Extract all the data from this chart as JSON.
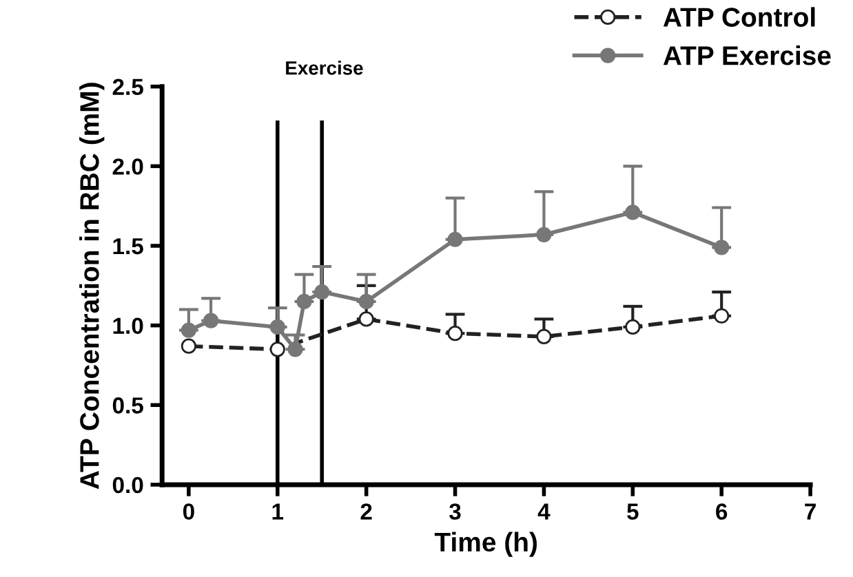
{
  "chart_data": {
    "type": "line",
    "xlabel": "Time (h)",
    "ylabel": "ATP Concentration in RBC (mM)",
    "xlim": [
      -0.3,
      7
    ],
    "xticks": [
      0,
      1,
      2,
      3,
      4,
      5,
      6,
      7
    ],
    "ylim": [
      0,
      2.5
    ],
    "yticks": [
      {
        "value": 0,
        "label": "0.0"
      },
      {
        "value": 0.5,
        "label": "0.5"
      },
      {
        "value": 1,
        "label": "1.0"
      },
      {
        "value": 1.5,
        "label": "1.5"
      },
      {
        "value": 2,
        "label": "2.0"
      },
      {
        "value": 2.5,
        "label": "2.5"
      }
    ],
    "grid": false,
    "legend": "top right",
    "ref_lines": [
      {
        "axis": "x",
        "value": 1,
        "color": "#000000"
      },
      {
        "axis": "x",
        "value": 1.5,
        "color": "#000000"
      }
    ],
    "annotations": [
      "Exercise"
    ],
    "series": [
      {
        "name": "ATP Control",
        "color": "#222222",
        "marker": "circle",
        "line_style": "dashed",
        "x": [
          0,
          1,
          2,
          3,
          4,
          5,
          6
        ],
        "values": [
          0.87,
          0.85,
          1.04,
          0.95,
          0.93,
          0.99,
          1.06
        ],
        "errors": [
          null,
          null,
          [
            1.04,
            1.25
          ],
          [
            0.95,
            1.07
          ],
          [
            0.93,
            1.04
          ],
          [
            0.99,
            1.12
          ],
          [
            1.06,
            1.21
          ]
        ]
      },
      {
        "name": "ATP Exercise",
        "color": "#777777",
        "marker": "circle",
        "line_style": "solid",
        "x": [
          0,
          0.25,
          1,
          1.2,
          1.3,
          1.5,
          2,
          3,
          4,
          5,
          6
        ],
        "values": [
          0.97,
          1.03,
          0.99,
          0.85,
          1.15,
          1.21,
          1.15,
          1.54,
          1.57,
          1.71,
          1.49
        ],
        "errors": [
          [
            0.97,
            1.1
          ],
          [
            1.03,
            1.17
          ],
          [
            0.99,
            1.11
          ],
          [
            0.85,
            0.94
          ],
          [
            1.15,
            1.32
          ],
          [
            1.21,
            1.37
          ],
          [
            1.15,
            1.32
          ],
          [
            1.54,
            1.8
          ],
          [
            1.57,
            1.84
          ],
          [
            1.71,
            2.0
          ],
          [
            1.49,
            1.74
          ]
        ]
      }
    ]
  }
}
